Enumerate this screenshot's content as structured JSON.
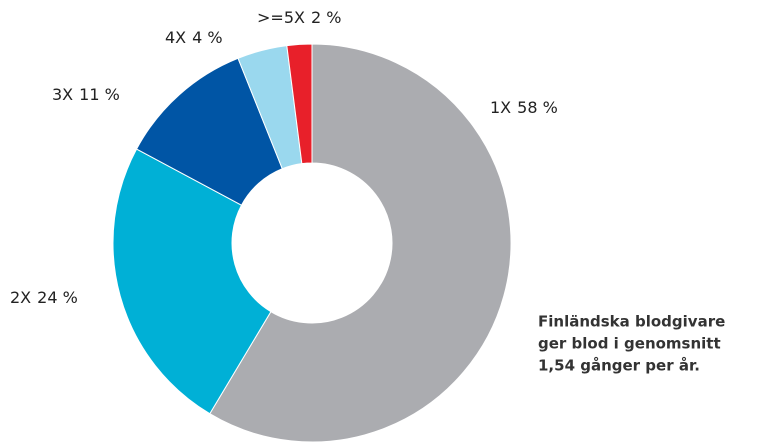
{
  "chart_data": {
    "type": "pie",
    "categories": [
      "1X",
      "2X",
      "3X",
      "4X",
      ">=5X"
    ],
    "values": [
      58,
      24,
      11,
      4,
      2
    ],
    "value_labels": [
      "58 %",
      "24 %",
      "11 %",
      "4 %",
      "2 %"
    ],
    "colors": [
      "#abacb0",
      "#00b0d6",
      "#0055a5",
      "#9ad8ee",
      "#e8202a"
    ],
    "annotation": [
      "Finländska blodgivare",
      "ger blod i genomsnitt",
      "1,54 gånger per år."
    ]
  }
}
